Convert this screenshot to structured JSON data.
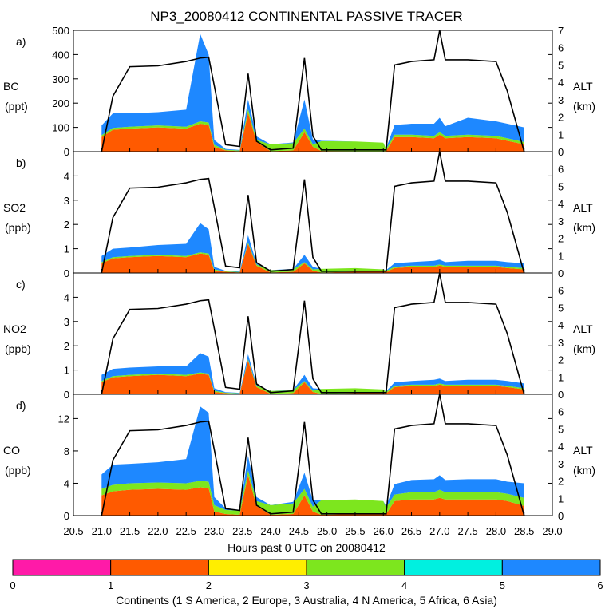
{
  "title": "NP3_20080412 CONTINENTAL PASSIVE TRACER",
  "xlabel": "Hours past 0 UTC on 20080412",
  "colorbar_label": "Continents (1 S America, 2 Europe, 3 Australia, 4 N America, 5 Africa, 6 Asia)",
  "colorbar": {
    "ticks": [
      "0",
      "1",
      "2",
      "3",
      "4",
      "5",
      "6"
    ],
    "colors": [
      "#ff1aa8",
      "#ff5a00",
      "#ffee00",
      "#7de61e",
      "#00f0e0",
      "#1e88ff"
    ]
  },
  "chart_data": [
    {
      "type": "area",
      "panel": "a)",
      "ylabel": "BC",
      "yunit": "(ppt)",
      "ylim": [
        0,
        500
      ],
      "yticks": [
        "0",
        "100",
        "200",
        "300",
        "400",
        "500"
      ],
      "alt_ylim": [
        0,
        7
      ],
      "alt_ticks": [
        "0",
        "1",
        "2",
        "3",
        "4",
        "5",
        "6",
        "7"
      ],
      "alt_label": "ALT",
      "alt_unit": "(km)",
      "xlim": [
        20.5,
        29.0
      ],
      "xticks": [
        "20.5",
        "21.0",
        "21.5",
        "22.0",
        "22.5",
        "23.0",
        "23.5",
        "24.0",
        "24.5",
        "25.0",
        "25.5",
        "26.0",
        "26.5",
        "27.0",
        "27.5",
        "28.0",
        "28.5",
        "29.0"
      ],
      "x": [
        21.0,
        21.2,
        21.5,
        22.0,
        22.5,
        22.75,
        22.9,
        23.0,
        23.2,
        23.45,
        23.6,
        23.75,
        24.0,
        24.4,
        24.6,
        24.75,
        24.9,
        25.5,
        26.0,
        26.05,
        26.2,
        26.5,
        26.9,
        27.0,
        27.1,
        27.5,
        28.0,
        28.2,
        28.5
      ],
      "series": [
        {
          "name": "1",
          "values": [
            60,
            90,
            95,
            100,
            95,
            115,
            110,
            20,
            5,
            2,
            160,
            40,
            2,
            5,
            80,
            20,
            3,
            2,
            2,
            3,
            60,
            60,
            55,
            70,
            55,
            60,
            55,
            45,
            30
          ]
        },
        {
          "name": "4",
          "values": [
            8,
            8,
            8,
            8,
            8,
            10,
            10,
            8,
            3,
            3,
            15,
            8,
            28,
            30,
            15,
            10,
            40,
            40,
            35,
            8,
            10,
            10,
            10,
            10,
            10,
            10,
            10,
            10,
            10
          ]
        },
        {
          "name": "6",
          "values": [
            40,
            60,
            55,
            55,
            70,
            360,
            280,
            20,
            3,
            2,
            40,
            15,
            0,
            3,
            120,
            20,
            2,
            0,
            0,
            2,
            40,
            45,
            50,
            60,
            40,
            70,
            60,
            60,
            60
          ]
        }
      ],
      "altitude_km": [
        0,
        3.2,
        4.9,
        4.95,
        5.2,
        5.4,
        5.45,
        3.8,
        0.4,
        0.3,
        4.5,
        0.6,
        0.1,
        0.2,
        5.4,
        0.9,
        0.1,
        0.1,
        0.1,
        0.1,
        5.0,
        5.2,
        5.3,
        7.0,
        5.3,
        5.3,
        5.2,
        3.5,
        0
      ]
    },
    {
      "type": "area",
      "panel": "b)",
      "ylabel": "SO2",
      "yunit": "(ppb)",
      "ylim": [
        0,
        5
      ],
      "yticks": [
        "0",
        "1",
        "2",
        "3",
        "4"
      ],
      "alt_ylim": [
        0,
        7
      ],
      "alt_ticks": [
        "0",
        "1",
        "2",
        "3",
        "4",
        "5",
        "6"
      ],
      "alt_label": "ALT",
      "alt_unit": "(km)",
      "xlim": [
        20.5,
        29.0
      ],
      "x": [
        21.0,
        21.2,
        21.5,
        22.0,
        22.5,
        22.75,
        22.9,
        23.0,
        23.2,
        23.45,
        23.6,
        23.75,
        24.0,
        24.4,
        24.6,
        24.75,
        24.9,
        25.5,
        26.0,
        26.05,
        26.2,
        26.5,
        26.9,
        27.0,
        27.1,
        27.5,
        28.0,
        28.2,
        28.5
      ],
      "series": [
        {
          "name": "1",
          "values": [
            0.4,
            0.6,
            0.65,
            0.7,
            0.65,
            0.8,
            0.75,
            0.1,
            0.05,
            0.02,
            1.2,
            0.3,
            0.02,
            0.05,
            0.4,
            0.1,
            0.02,
            0.05,
            0.05,
            0.05,
            0.2,
            0.25,
            0.25,
            0.3,
            0.25,
            0.25,
            0.25,
            0.2,
            0.15
          ]
        },
        {
          "name": "4",
          "values": [
            0.05,
            0.05,
            0.05,
            0.05,
            0.05,
            0.05,
            0.05,
            0.05,
            0.02,
            0.02,
            0.05,
            0.05,
            0.1,
            0.1,
            0.05,
            0.05,
            0.15,
            0.15,
            0.1,
            0.05,
            0.05,
            0.05,
            0.05,
            0.05,
            0.05,
            0.05,
            0.05,
            0.05,
            0.05
          ]
        },
        {
          "name": "6",
          "values": [
            0.25,
            0.35,
            0.35,
            0.4,
            0.5,
            1.2,
            1.0,
            0.1,
            0.02,
            0.02,
            0.3,
            0.05,
            0,
            0.02,
            0.3,
            0.1,
            0,
            0,
            0,
            0.02,
            0.15,
            0.15,
            0.2,
            0.2,
            0.15,
            0.2,
            0.2,
            0.2,
            0.2
          ]
        }
      ],
      "altitude_km": [
        0,
        3.2,
        4.9,
        4.95,
        5.2,
        5.4,
        5.45,
        3.8,
        0.4,
        0.3,
        4.5,
        0.6,
        0.1,
        0.2,
        5.4,
        0.9,
        0.1,
        0.1,
        0.1,
        0.1,
        5.0,
        5.2,
        5.3,
        7.0,
        5.3,
        5.3,
        5.2,
        3.5,
        0
      ]
    },
    {
      "type": "area",
      "panel": "c)",
      "ylabel": "NO2",
      "yunit": "(ppb)",
      "ylim": [
        0,
        5
      ],
      "yticks": [
        "0",
        "1",
        "2",
        "3",
        "4"
      ],
      "alt_ylim": [
        0,
        7
      ],
      "alt_ticks": [
        "0",
        "1",
        "2",
        "3",
        "4",
        "5",
        "6"
      ],
      "alt_label": "ALT",
      "alt_unit": "(km)",
      "xlim": [
        20.5,
        29.0
      ],
      "x": [
        21.0,
        21.2,
        21.5,
        22.0,
        22.5,
        22.75,
        22.9,
        23.0,
        23.2,
        23.45,
        23.6,
        23.75,
        24.0,
        24.4,
        24.6,
        24.75,
        24.9,
        25.5,
        26.0,
        26.05,
        26.2,
        26.5,
        26.9,
        27.0,
        27.1,
        27.5,
        28.0,
        28.2,
        28.5
      ],
      "series": [
        {
          "name": "1",
          "values": [
            0.5,
            0.7,
            0.75,
            0.8,
            0.75,
            0.85,
            0.8,
            0.1,
            0.05,
            0.02,
            1.4,
            0.3,
            0.02,
            0.05,
            0.5,
            0.1,
            0.02,
            0.05,
            0.05,
            0.05,
            0.3,
            0.35,
            0.35,
            0.4,
            0.35,
            0.35,
            0.35,
            0.3,
            0.2
          ]
        },
        {
          "name": "4",
          "values": [
            0.05,
            0.05,
            0.05,
            0.05,
            0.05,
            0.05,
            0.05,
            0.05,
            0.02,
            0.02,
            0.05,
            0.05,
            0.12,
            0.12,
            0.05,
            0.05,
            0.2,
            0.2,
            0.15,
            0.05,
            0.05,
            0.05,
            0.05,
            0.05,
            0.05,
            0.05,
            0.05,
            0.05,
            0.05
          ]
        },
        {
          "name": "6",
          "values": [
            0.25,
            0.3,
            0.3,
            0.3,
            0.35,
            0.8,
            0.7,
            0.1,
            0.02,
            0.02,
            0.2,
            0.05,
            0,
            0.02,
            0.25,
            0.1,
            0,
            0,
            0,
            0.02,
            0.15,
            0.15,
            0.2,
            0.2,
            0.15,
            0.2,
            0.2,
            0.2,
            0.2
          ]
        }
      ],
      "altitude_km": [
        0,
        3.2,
        4.9,
        4.95,
        5.2,
        5.4,
        5.45,
        3.8,
        0.4,
        0.3,
        4.5,
        0.6,
        0.1,
        0.2,
        5.4,
        0.9,
        0.1,
        0.1,
        0.1,
        0.1,
        5.0,
        5.2,
        5.3,
        7.0,
        5.3,
        5.3,
        5.2,
        3.5,
        0
      ]
    },
    {
      "type": "area",
      "panel": "d)",
      "ylabel": "CO",
      "yunit": "(ppb)",
      "ylim": [
        0,
        15
      ],
      "yticks": [
        "0",
        "4",
        "8",
        "12"
      ],
      "alt_ylim": [
        0,
        7
      ],
      "alt_ticks": [
        "0",
        "1",
        "2",
        "3",
        "4",
        "5",
        "6"
      ],
      "alt_label": "ALT",
      "alt_unit": "(km)",
      "xlim": [
        20.5,
        29.0
      ],
      "x": [
        21.0,
        21.2,
        21.5,
        22.0,
        22.5,
        22.75,
        22.9,
        23.0,
        23.2,
        23.45,
        23.6,
        23.75,
        24.0,
        24.4,
        24.6,
        24.75,
        24.9,
        25.5,
        26.0,
        26.05,
        26.2,
        26.5,
        26.9,
        27.0,
        27.1,
        27.5,
        28.0,
        28.2,
        28.5
      ],
      "series": [
        {
          "name": "1",
          "values": [
            2.5,
            3.0,
            3.2,
            3.3,
            3.2,
            3.5,
            3.4,
            0.5,
            0.2,
            0.1,
            5.0,
            1.2,
            0.1,
            0.2,
            2.5,
            0.5,
            0.1,
            0.2,
            0.2,
            0.2,
            1.8,
            2.0,
            2.0,
            2.2,
            2.0,
            2.0,
            2.0,
            1.8,
            1.2
          ]
        },
        {
          "name": "4",
          "values": [
            0.8,
            0.8,
            0.8,
            0.8,
            0.8,
            0.8,
            0.8,
            0.8,
            0.5,
            0.5,
            0.6,
            0.6,
            1.2,
            1.3,
            0.8,
            0.6,
            1.8,
            1.8,
            1.6,
            0.8,
            0.8,
            0.9,
            0.9,
            1.0,
            0.9,
            0.9,
            0.9,
            0.9,
            1.0
          ]
        },
        {
          "name": "6",
          "values": [
            1.8,
            2.5,
            2.4,
            2.5,
            3.0,
            9.2,
            8.5,
            1.0,
            0.2,
            0.1,
            1.8,
            0.5,
            0,
            0.2,
            2.0,
            0.8,
            0,
            0,
            0,
            0.2,
            1.3,
            1.5,
            1.6,
            1.8,
            1.5,
            1.6,
            1.6,
            1.5,
            1.8
          ]
        }
      ],
      "altitude_km": [
        0,
        3.2,
        4.9,
        4.95,
        5.2,
        5.4,
        5.45,
        3.8,
        0.4,
        0.3,
        4.5,
        0.6,
        0.1,
        0.2,
        5.4,
        0.9,
        0.1,
        0.1,
        0.1,
        0.1,
        5.0,
        5.2,
        5.3,
        7.0,
        5.3,
        5.3,
        5.2,
        3.5,
        0
      ]
    }
  ]
}
